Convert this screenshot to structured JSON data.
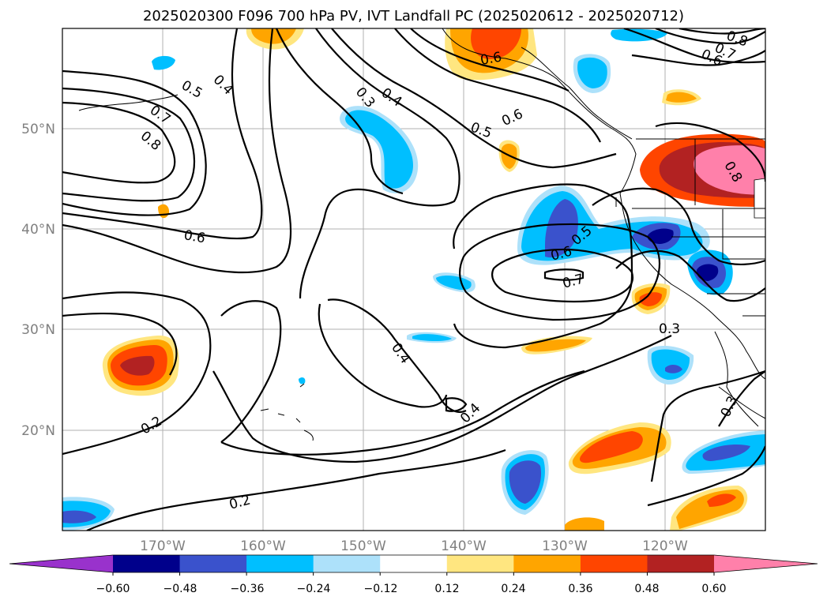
{
  "title": "2025020300 F096 700 hPa PV, IVT Landfall PC (2025020612 - 2025020712)",
  "map": {
    "x_ticks": [
      "170°W",
      "160°W",
      "150°W",
      "140°W",
      "130°W",
      "120°W"
    ],
    "y_ticks": [
      "50°N",
      "40°N",
      "30°N",
      "20°N"
    ],
    "grid": "on"
  },
  "colorbar": {
    "tick_labels": [
      "−0.60",
      "−0.48",
      "−0.36",
      "−0.24",
      "−0.12",
      "0.12",
      "0.24",
      "0.36",
      "0.48",
      "0.60"
    ],
    "colors": [
      "#9932CC",
      "#00008B",
      "#3A52CC",
      "#00BFFF",
      "#ADE1FA",
      "#FFFFFF",
      "#FFE680",
      "#FFA500",
      "#FF4500",
      "#B22222",
      "#FF80AA"
    ],
    "extend": "both"
  },
  "contour_labels": {
    "c1": "0.5",
    "c2": "0.4",
    "c3": "0.7",
    "c4": "0.8",
    "c5": "0.3",
    "c6": "0.4",
    "c7": "0.6",
    "c8": "0.6",
    "c9": "0.5",
    "c10": "0.8",
    "c11": "0.7",
    "c12": "0.6",
    "c13": "0.6",
    "c14": "0.5",
    "c15": "0.6",
    "c16": "0.7",
    "c17": "0.4",
    "c18": "0.4",
    "c19": "0.3",
    "c20": "0.3",
    "c21": "0.2",
    "c22": "0.2",
    "c23": "0.8"
  }
}
